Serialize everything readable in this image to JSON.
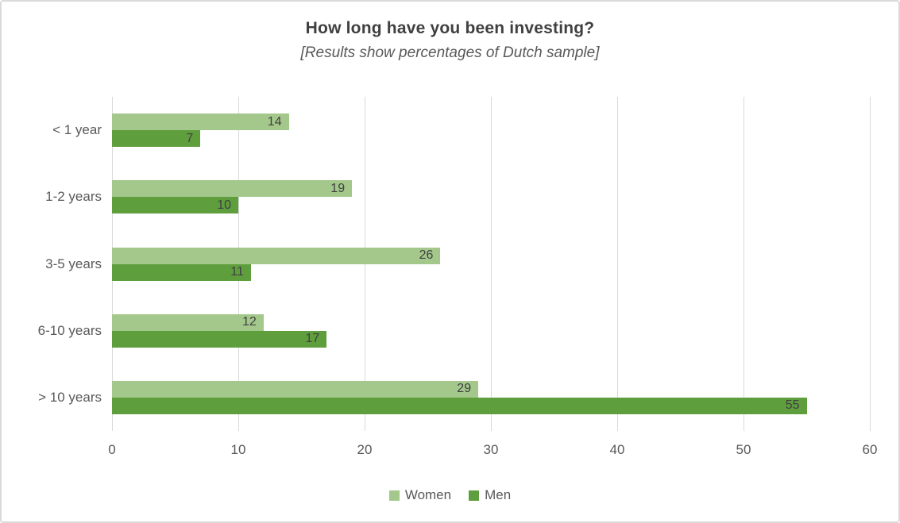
{
  "chart_data": {
    "type": "bar",
    "orientation": "horizontal",
    "title": "How long have you been investing?",
    "subtitle": "[Results show percentages of Dutch sample]",
    "categories": [
      "< 1 year",
      "1-2 years",
      "3-5 years",
      "6-10 years",
      "> 10 years"
    ],
    "series": [
      {
        "name": "Women",
        "color": "#a4c88c",
        "values": [
          14,
          19,
          26,
          12,
          29
        ]
      },
      {
        "name": "Men",
        "color": "#5f9e3d",
        "values": [
          7,
          10,
          11,
          17,
          55
        ]
      }
    ],
    "xlabel": "",
    "ylabel": "",
    "xlim": [
      0,
      60
    ],
    "xticks": [
      0,
      10,
      20,
      30,
      40,
      50,
      60
    ],
    "grid": true,
    "legend_position": "bottom",
    "data_labels": "inside-end",
    "colors": {
      "gridline": "#d9d9d9",
      "axis_text": "#595959",
      "value_label_text": "#404040",
      "title_text": "#404040",
      "subtitle_text": "#595959"
    }
  }
}
